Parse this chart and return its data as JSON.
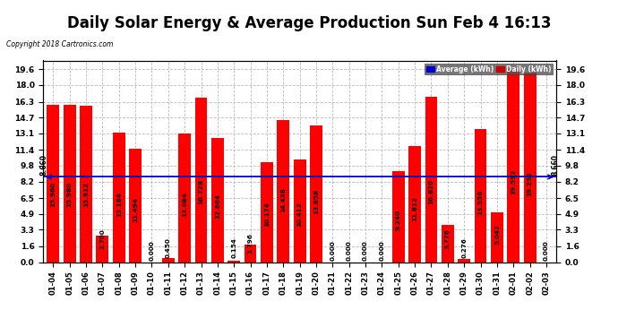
{
  "title": "Daily Solar Energy & Average Production Sun Feb 4 16:13",
  "copyright": "Copyright 2018 Cartronics.com",
  "average_value": 8.66,
  "categories": [
    "01-04",
    "01-05",
    "01-06",
    "01-07",
    "01-08",
    "01-09",
    "01-10",
    "01-11",
    "01-12",
    "01-13",
    "01-14",
    "01-15",
    "01-16",
    "01-17",
    "01-18",
    "01-19",
    "01-20",
    "01-21",
    "01-22",
    "01-23",
    "01-24",
    "01-25",
    "01-26",
    "01-27",
    "01-28",
    "01-29",
    "01-30",
    "01-31",
    "02-01",
    "02-02",
    "02-03"
  ],
  "values": [
    15.96,
    15.98,
    15.912,
    2.7,
    13.184,
    11.494,
    0.0,
    0.45,
    13.084,
    16.728,
    12.664,
    0.154,
    1.796,
    10.174,
    14.438,
    10.412,
    13.858,
    0.0,
    0.0,
    0.0,
    0.0,
    9.24,
    11.812,
    16.82,
    3.776,
    0.276,
    13.556,
    5.042,
    19.592,
    19.252,
    0.0
  ],
  "bar_color": "#ff0000",
  "average_line_color": "#0000cc",
  "background_color": "#ffffff",
  "grid_color": "#bbbbbb",
  "yticks": [
    0.0,
    1.6,
    3.3,
    4.9,
    6.5,
    8.2,
    9.8,
    11.4,
    13.1,
    14.7,
    16.3,
    18.0,
    19.6
  ],
  "ylim": [
    0.0,
    20.5
  ],
  "legend_avg_bg": "#0000cc",
  "legend_daily_bg": "#cc0000",
  "value_fontsize": 5.2,
  "bar_width": 0.75,
  "title_fontsize": 12
}
